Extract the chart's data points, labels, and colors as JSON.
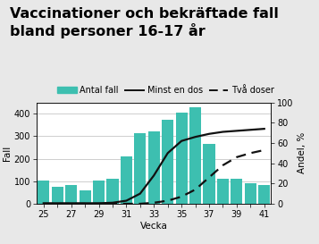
{
  "title_line1": "Vaccinationer och bekräftade fall",
  "title_line2": "bland personer 16-17 år",
  "xlabel": "Vecka",
  "ylabel_left": "Fall",
  "ylabel_right": "Andel, %",
  "weeks": [
    25,
    26,
    27,
    28,
    29,
    30,
    31,
    32,
    33,
    34,
    35,
    36,
    37,
    38,
    39,
    40,
    41
  ],
  "cases": [
    105,
    75,
    85,
    60,
    105,
    110,
    210,
    315,
    320,
    375,
    405,
    430,
    265,
    110,
    110,
    90,
    85
  ],
  "min_one_dose": [
    0.5,
    0.5,
    0.5,
    0.5,
    0.5,
    1,
    3,
    10,
    28,
    50,
    62,
    66,
    69,
    71,
    72,
    73,
    74
  ],
  "two_doses": [
    0,
    0,
    0,
    0,
    0,
    0,
    0,
    0,
    1,
    3,
    7,
    14,
    26,
    38,
    46,
    50,
    53
  ],
  "bar_color": "#3dbfb0",
  "line1_color": "#111111",
  "line2_color": "#111111",
  "ylim_left": [
    0,
    450
  ],
  "ylim_right": [
    0,
    100
  ],
  "yticks_left": [
    0,
    100,
    200,
    300,
    400
  ],
  "yticks_right": [
    0,
    20,
    40,
    60,
    80,
    100
  ],
  "bg_color": "#e8e8e8",
  "plot_bg": "#ffffff",
  "legend_labels": [
    "Antal fall",
    "Minst en dos",
    "Två doser"
  ],
  "title_fontsize": 11.5,
  "axis_fontsize": 7,
  "label_fontsize": 7.5
}
